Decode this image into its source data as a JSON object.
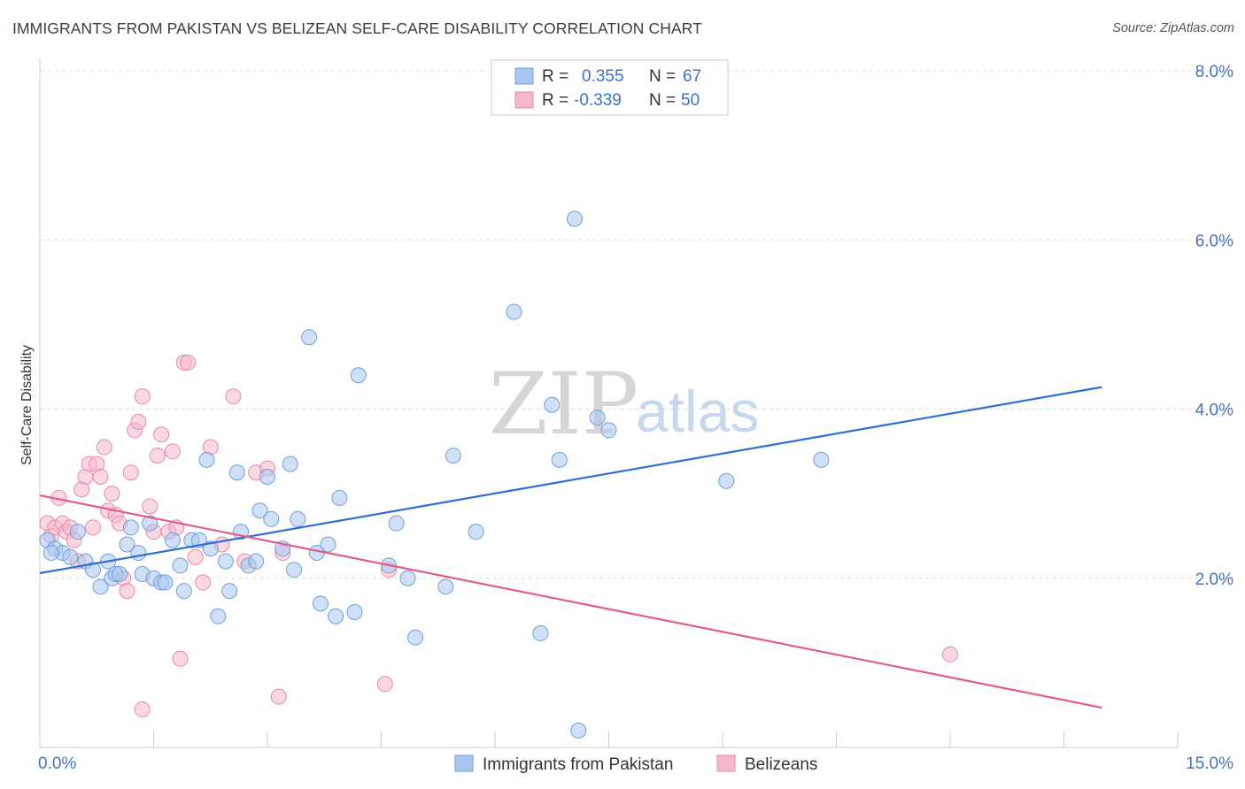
{
  "title": "IMMIGRANTS FROM PAKISTAN VS BELIZEAN SELF-CARE DISABILITY CORRELATION CHART",
  "source": "Source: ZipAtlas.com",
  "watermark": {
    "part1": "ZIP",
    "part2": "atlas"
  },
  "colors": {
    "blue_fill": "#a9c6ef",
    "blue_stroke": "#6f9fdc",
    "blue_line": "#2e6fd0",
    "pink_fill": "#f5b8cb",
    "pink_stroke": "#e88aa8",
    "pink_line": "#e05c8a",
    "grid": "#dddddd",
    "axis_text": "#4472c4"
  },
  "legend": {
    "rows": [
      {
        "r_label": "R =",
        "r_value": "0.355",
        "n_label": "N =",
        "n_value": "67"
      },
      {
        "r_label": "R =",
        "r_value": "-0.339",
        "n_label": "N =",
        "n_value": "50"
      }
    ]
  },
  "bottom_legend": {
    "series1": "Immigrants from Pakistan",
    "series2": "Belizeans"
  },
  "chart_data": {
    "type": "scatter",
    "title": "IMMIGRANTS FROM PAKISTAN VS BELIZEAN SELF-CARE DISABILITY CORRELATION CHART",
    "ylabel": "Self-Care Disability",
    "xlabel": "",
    "xlim": [
      0,
      15
    ],
    "ylim": [
      0,
      8
    ],
    "x_tick_labels": [
      "0.0%",
      "15.0%"
    ],
    "y_tick_labels": [
      "2.0%",
      "4.0%",
      "6.0%",
      "8.0%"
    ],
    "y_ticks": [
      2,
      4,
      6,
      8
    ],
    "legend_position": "top-center",
    "grid": true,
    "series": [
      {
        "name": "Immigrants from Pakistan",
        "color": "#a9c6ef",
        "trend": {
          "x": [
            0,
            14.0
          ],
          "y": [
            2.06,
            4.26
          ]
        },
        "points": [
          [
            0.1,
            2.45
          ],
          [
            0.2,
            2.35
          ],
          [
            0.3,
            2.3
          ],
          [
            0.4,
            2.25
          ],
          [
            0.5,
            2.55
          ],
          [
            0.6,
            2.2
          ],
          [
            0.7,
            2.1
          ],
          [
            0.8,
            1.9
          ],
          [
            0.9,
            2.2
          ],
          [
            0.95,
            2.0
          ],
          [
            1.0,
            2.05
          ],
          [
            1.05,
            2.05
          ],
          [
            1.15,
            2.4
          ],
          [
            1.2,
            2.6
          ],
          [
            1.3,
            2.3
          ],
          [
            1.35,
            2.05
          ],
          [
            1.45,
            2.65
          ],
          [
            1.5,
            2.0
          ],
          [
            1.6,
            1.95
          ],
          [
            1.65,
            1.95
          ],
          [
            1.75,
            2.45
          ],
          [
            1.85,
            2.15
          ],
          [
            1.9,
            1.85
          ],
          [
            2.0,
            2.45
          ],
          [
            2.1,
            2.45
          ],
          [
            2.2,
            3.4
          ],
          [
            2.25,
            2.35
          ],
          [
            2.35,
            1.55
          ],
          [
            2.45,
            2.2
          ],
          [
            2.5,
            1.85
          ],
          [
            2.6,
            3.25
          ],
          [
            2.65,
            2.55
          ],
          [
            2.75,
            2.15
          ],
          [
            2.85,
            2.2
          ],
          [
            2.9,
            2.8
          ],
          [
            3.0,
            3.2
          ],
          [
            3.05,
            2.7
          ],
          [
            3.2,
            2.35
          ],
          [
            3.3,
            3.35
          ],
          [
            3.35,
            2.1
          ],
          [
            3.4,
            2.7
          ],
          [
            3.55,
            4.85
          ],
          [
            3.65,
            2.3
          ],
          [
            3.7,
            1.7
          ],
          [
            3.8,
            2.4
          ],
          [
            3.9,
            1.55
          ],
          [
            3.95,
            2.95
          ],
          [
            4.15,
            1.6
          ],
          [
            4.2,
            4.4
          ],
          [
            4.6,
            2.15
          ],
          [
            4.7,
            2.65
          ],
          [
            4.85,
            2.0
          ],
          [
            4.95,
            1.3
          ],
          [
            5.35,
            1.9
          ],
          [
            5.45,
            3.45
          ],
          [
            5.75,
            2.55
          ],
          [
            6.25,
            5.15
          ],
          [
            6.6,
            1.35
          ],
          [
            6.75,
            4.05
          ],
          [
            6.85,
            3.4
          ],
          [
            7.05,
            6.25
          ],
          [
            7.1,
            0.2
          ],
          [
            7.35,
            3.9
          ],
          [
            7.5,
            3.75
          ],
          [
            9.05,
            3.15
          ],
          [
            10.3,
            3.4
          ],
          [
            0.15,
            2.3
          ]
        ]
      },
      {
        "name": "Belizeans",
        "color": "#f5b8cb",
        "trend": {
          "x": [
            0,
            14.0
          ],
          "y": [
            2.98,
            0.47
          ]
        },
        "points": [
          [
            0.1,
            2.65
          ],
          [
            0.15,
            2.5
          ],
          [
            0.2,
            2.6
          ],
          [
            0.25,
            2.95
          ],
          [
            0.3,
            2.65
          ],
          [
            0.35,
            2.55
          ],
          [
            0.4,
            2.6
          ],
          [
            0.45,
            2.45
          ],
          [
            0.5,
            2.2
          ],
          [
            0.55,
            3.05
          ],
          [
            0.6,
            3.2
          ],
          [
            0.65,
            3.35
          ],
          [
            0.7,
            2.6
          ],
          [
            0.75,
            3.35
          ],
          [
            0.8,
            3.2
          ],
          [
            0.85,
            3.55
          ],
          [
            0.9,
            2.8
          ],
          [
            0.95,
            3.0
          ],
          [
            1.0,
            2.75
          ],
          [
            1.05,
            2.65
          ],
          [
            1.1,
            2.0
          ],
          [
            1.15,
            1.85
          ],
          [
            1.2,
            3.25
          ],
          [
            1.25,
            3.75
          ],
          [
            1.3,
            3.85
          ],
          [
            1.35,
            4.15
          ],
          [
            1.45,
            2.85
          ],
          [
            1.5,
            2.55
          ],
          [
            1.55,
            3.45
          ],
          [
            1.6,
            3.7
          ],
          [
            1.7,
            2.55
          ],
          [
            1.75,
            3.5
          ],
          [
            1.8,
            2.6
          ],
          [
            1.85,
            1.05
          ],
          [
            1.9,
            4.55
          ],
          [
            1.95,
            4.55
          ],
          [
            2.05,
            2.25
          ],
          [
            2.15,
            1.95
          ],
          [
            2.25,
            3.55
          ],
          [
            2.4,
            2.4
          ],
          [
            2.55,
            4.15
          ],
          [
            2.7,
            2.2
          ],
          [
            2.85,
            3.25
          ],
          [
            3.0,
            3.3
          ],
          [
            3.2,
            2.3
          ],
          [
            3.15,
            0.6
          ],
          [
            4.55,
            0.75
          ],
          [
            4.6,
            2.1
          ],
          [
            1.35,
            0.45
          ],
          [
            12.0,
            1.1
          ]
        ]
      }
    ]
  }
}
